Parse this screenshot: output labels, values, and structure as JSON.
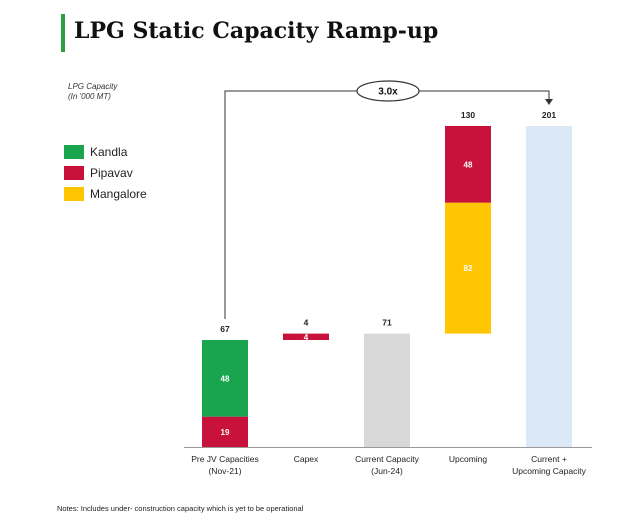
{
  "title": "LPG Static Capacity Ramp-up",
  "ylabel_line1": "LPG Capacity",
  "ylabel_line2": "(In '000 MT)",
  "legend": [
    {
      "label": "Kandla",
      "color": "#19a44e"
    },
    {
      "label": "Pipavav",
      "color": "#c8123c"
    },
    {
      "label": "Mangalore",
      "color": "#ffc500"
    }
  ],
  "note": "Notes: Includes under- construction capacity which is yet to be operational",
  "chart_data": {
    "type": "bar",
    "subtype": "waterfall",
    "title": "LPG Static Capacity Ramp-up",
    "ylabel": "LPG Capacity (In '000 MT)",
    "ylim": [
      0,
      201
    ],
    "categories": [
      {
        "line1": "Pre JV Capacities",
        "line2": "(Nov-21)"
      },
      {
        "line1": "Capex",
        "line2": ""
      },
      {
        "line1": "Current Capacity",
        "line2": "(Jun-24)"
      },
      {
        "line1": "Upcoming",
        "line2": ""
      },
      {
        "line1": "Current +",
        "line2": "Upcoming Capacity"
      }
    ],
    "bars": [
      {
        "base": 0,
        "total_label": "67",
        "segments": [
          {
            "series": "Pipavav",
            "value": 19,
            "label": "19",
            "color": "#c8123c"
          },
          {
            "series": "Kandla",
            "value": 48,
            "label": "48",
            "color": "#19a44e"
          }
        ]
      },
      {
        "base": 67,
        "total_label": "4",
        "segments": [
          {
            "series": "Pipavav",
            "value": 4,
            "label": "4",
            "color": "#c8123c"
          }
        ]
      },
      {
        "base": 0,
        "total_label": "71",
        "segments": [
          {
            "series": "Total",
            "value": 71,
            "label": "",
            "color": "#d8d8d8"
          }
        ]
      },
      {
        "base": 71,
        "total_label": "130",
        "segments": [
          {
            "series": "Mangalore",
            "value": 82,
            "label": "82",
            "color": "#ffc500"
          },
          {
            "series": "Pipavav",
            "value": 48,
            "label": "48",
            "color": "#c8123c"
          }
        ]
      },
      {
        "base": 0,
        "total_label": "201",
        "segments": [
          {
            "series": "Total",
            "value": 201,
            "label": "",
            "color": "#dbe8f6"
          }
        ]
      }
    ],
    "annotation": {
      "text": "3.0x",
      "from_category": 0,
      "to_category": 4
    }
  }
}
